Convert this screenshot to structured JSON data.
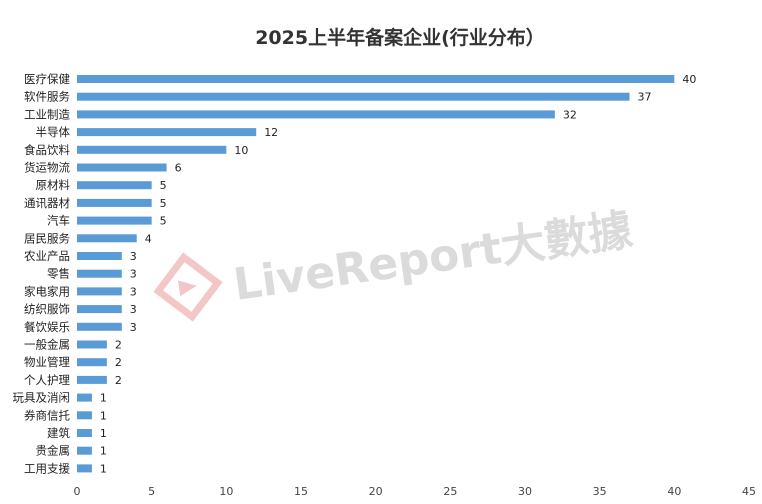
{
  "chart_data": {
    "type": "bar",
    "orientation": "horizontal",
    "title": "2025上半年备案企业(行业分布）",
    "categories": [
      "医疗保健",
      "软件服务",
      "工业制造",
      "半导体",
      "食品饮料",
      "货运物流",
      "原材料",
      "通讯器材",
      "汽车",
      "居民服务",
      "农业产品",
      "零售",
      "家电家用",
      "纺织服饰",
      "餐饮娱乐",
      "一般金属",
      "物业管理",
      "个人护理",
      "玩具及消闲",
      "券商信托",
      "建筑",
      "贵金属",
      "工用支援"
    ],
    "values": [
      40,
      37,
      32,
      12,
      10,
      6,
      5,
      5,
      5,
      4,
      3,
      3,
      3,
      3,
      3,
      2,
      2,
      2,
      1,
      1,
      1,
      1,
      1
    ],
    "xlim": [
      0,
      45
    ],
    "xticks": [
      0,
      5,
      10,
      15,
      20,
      25,
      30,
      35,
      40,
      45
    ],
    "grid": false,
    "bar_color": "#5b9bd5",
    "data_labels": true
  },
  "watermark": {
    "text": "LiveReport大數據",
    "color": "#d8d8d8"
  }
}
